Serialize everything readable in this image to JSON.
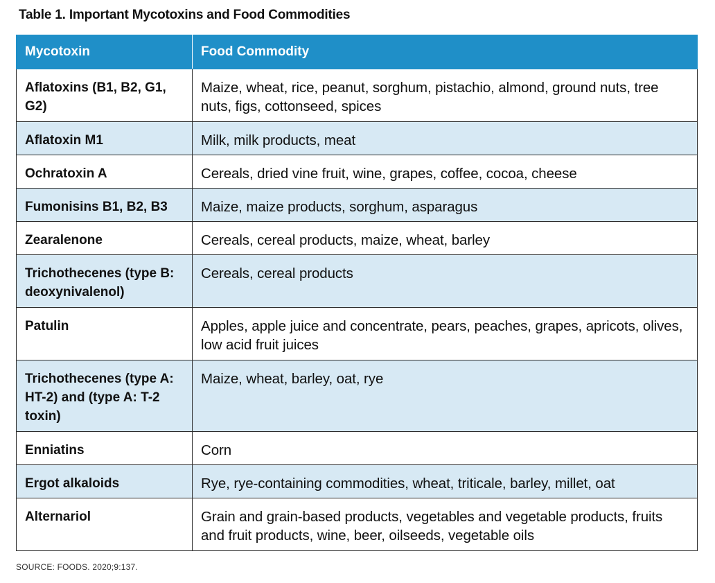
{
  "caption": "Table 1. Important Mycotoxins and Food Commodities",
  "table": {
    "headers": [
      "Mycotoxin",
      "Food Commodity"
    ],
    "rows": [
      {
        "mycotoxin": "Aflatoxins (B1, B2, G1, G2)",
        "commodity": "Maize, wheat, rice, peanut, sorghum, pistachio, almond, ground nuts, tree nuts, figs, cottonseed, spices"
      },
      {
        "mycotoxin": "Aflatoxin M1",
        "commodity": "Milk, milk products, meat"
      },
      {
        "mycotoxin": "Ochratoxin A",
        "commodity": "Cereals, dried vine fruit, wine, grapes, coffee, cocoa, cheese"
      },
      {
        "mycotoxin": "Fumonisins B1, B2, B3",
        "commodity": "Maize, maize products, sorghum, asparagus"
      },
      {
        "mycotoxin": "Zearalenone",
        "commodity": "Cereals, cereal products, maize, wheat, barley"
      },
      {
        "mycotoxin": "Trichothecenes (type B: deoxynivalenol)",
        "commodity": "Cereals, cereal products"
      },
      {
        "mycotoxin": "Patulin",
        "commodity": "Apples, apple juice and concentrate, pears, peaches, grapes, apricots, olives, low acid fruit juices"
      },
      {
        "mycotoxin": "Trichothecenes (type A: HT-2) and (type A: T-2 toxin)",
        "commodity": "Maize, wheat, barley, oat, rye"
      },
      {
        "mycotoxin": "Enniatins",
        "commodity": "Corn"
      },
      {
        "mycotoxin": "Ergot alkaloids",
        "commodity": "Rye, rye-containing commodities, wheat, triticale, barley, millet, oat"
      },
      {
        "mycotoxin": "Alternariol",
        "commodity": "Grain and grain-based products, vegetables and vegetable products, fruits and fruit products, wine, beer, oilseeds, vegetable oils"
      }
    ]
  },
  "source": "SOURCE: FOODS. 2020;9:137.",
  "colors": {
    "header_bg": "#1f8fc8",
    "stripe_bg": "#d7e9f4"
  }
}
